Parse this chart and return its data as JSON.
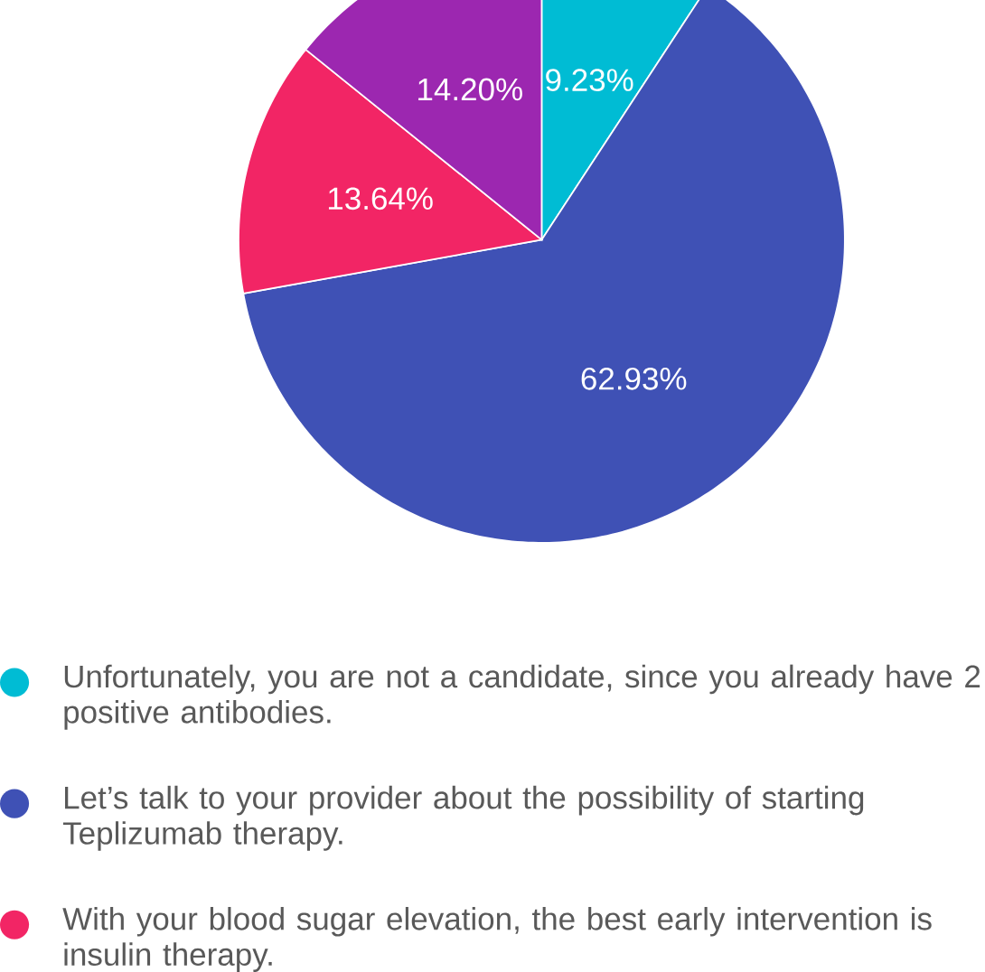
{
  "chart_data": {
    "type": "pie",
    "categories": [
      "Unfortunately, you are not a candidate, since you already have 2 positive antibodies.",
      "Let’s talk to your provider about the possibility of starting Teplizumab therapy.",
      "With your blood sugar elevation, the best early intervention is insulin therapy.",
      null
    ],
    "values": [
      9.23,
      62.93,
      13.64,
      14.2
    ],
    "value_labels": [
      "9.23%",
      "62.93%",
      "13.64%",
      "14.20%"
    ],
    "colors": [
      "#00bcd4",
      "#3f51b5",
      "#f22565",
      "#9c27b0"
    ],
    "legend": "bottom"
  }
}
